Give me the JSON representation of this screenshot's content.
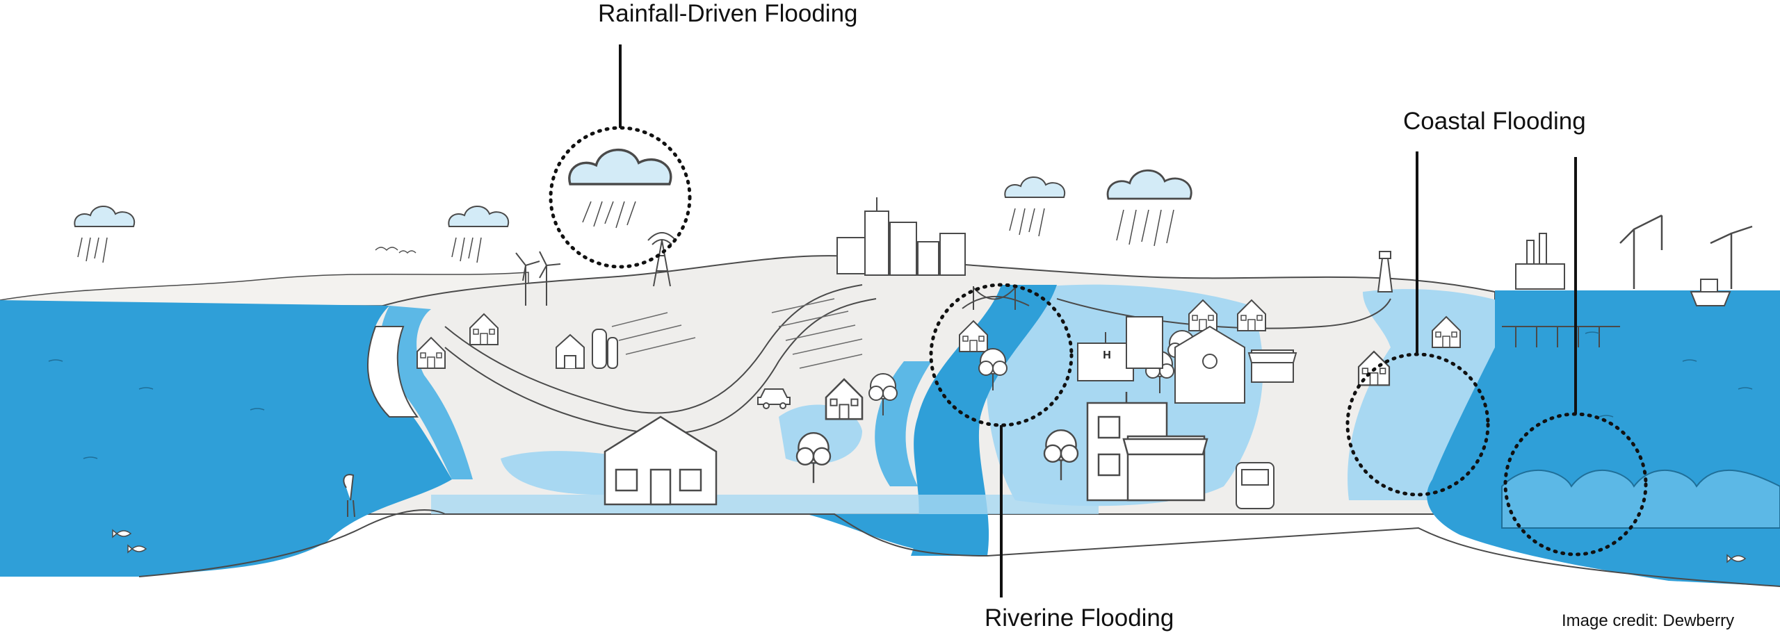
{
  "labels": {
    "rainfall": "Rainfall-Driven Flooding",
    "coastal": "Coastal Flooding",
    "riverine": "Riverine Flooding"
  },
  "credit": "Image credit: Dewberry",
  "building_signs": {
    "hospital": "H"
  },
  "colors": {
    "water_deep": "#2f9fd8",
    "water_light": "#5cb8e6",
    "flood_pale": "#a8d8f2",
    "land": "#efeeec",
    "line": "#4a4a4a",
    "callout": "#111111"
  },
  "icons": [
    "cloud-icon",
    "rain-icon",
    "house-icon",
    "city-skyline-icon",
    "wind-turbine-icon",
    "radio-tower-icon",
    "bridge-icon",
    "bus-icon",
    "crane-icon",
    "factory-icon",
    "ship-icon",
    "tree-icon",
    "bird-icon",
    "fish-icon",
    "heron-icon",
    "car-icon",
    "barn-icon",
    "silo-icon",
    "store-icon",
    "school-icon",
    "hospital-icon",
    "lighthouse-icon",
    "pier-icon"
  ]
}
